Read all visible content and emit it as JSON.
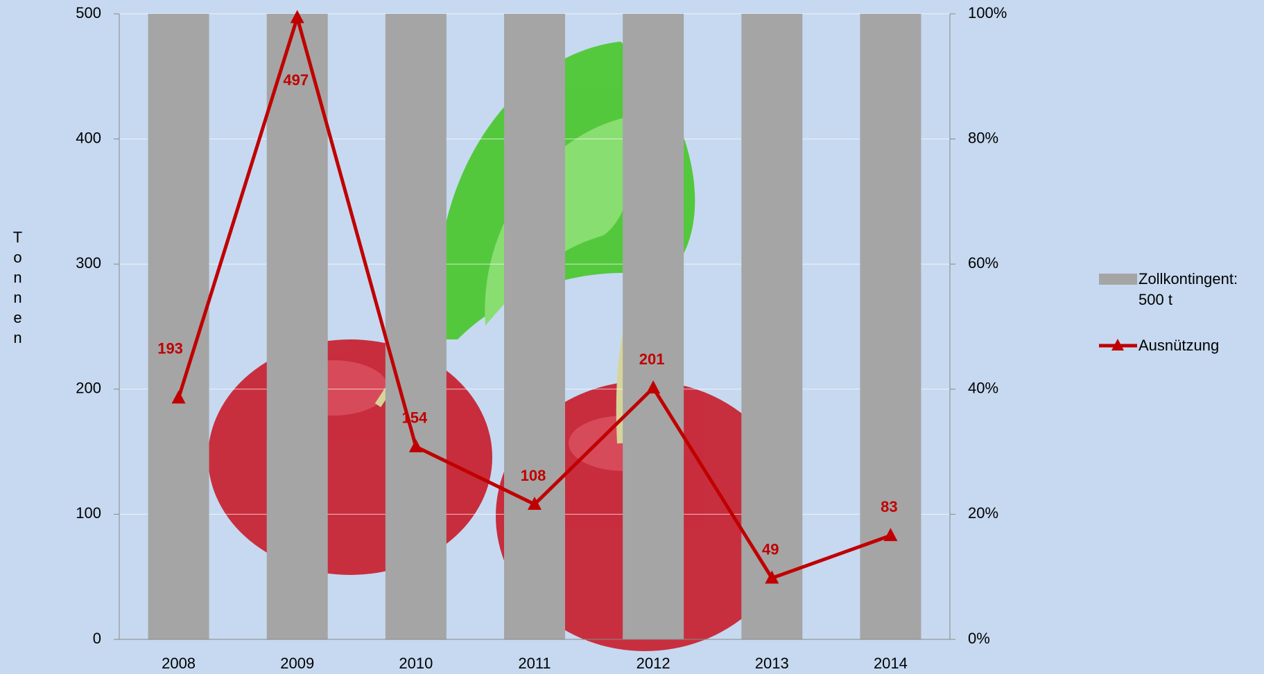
{
  "chart_data": {
    "type": "bar",
    "ylabel": "Tonnen",
    "categories": [
      "2008",
      "2009",
      "2010",
      "2011",
      "2012",
      "2013",
      "2014"
    ],
    "series": [
      {
        "name": "Zollkontingent: 500 t",
        "type": "bar",
        "color": "#a5a5a5",
        "values": [
          500,
          500,
          500,
          500,
          500,
          500,
          500
        ]
      },
      {
        "name": "Ausnützung",
        "type": "line",
        "color": "#c00000",
        "values": [
          193,
          497,
          154,
          108,
          201,
          49,
          83
        ]
      }
    ],
    "ylim": [
      0,
      500
    ],
    "yticks": [
      0,
      100,
      200,
      300,
      400,
      500
    ],
    "y2lim": [
      0,
      100
    ],
    "y2ticks": [
      {
        "value": 0,
        "label": "0%"
      },
      {
        "value": 20,
        "label": "20%"
      },
      {
        "value": 40,
        "label": "40%"
      },
      {
        "value": 60,
        "label": "60%"
      },
      {
        "value": 80,
        "label": "80%"
      },
      {
        "value": 100,
        "label": "100%"
      }
    ],
    "grid": true,
    "legend": "right"
  }
}
